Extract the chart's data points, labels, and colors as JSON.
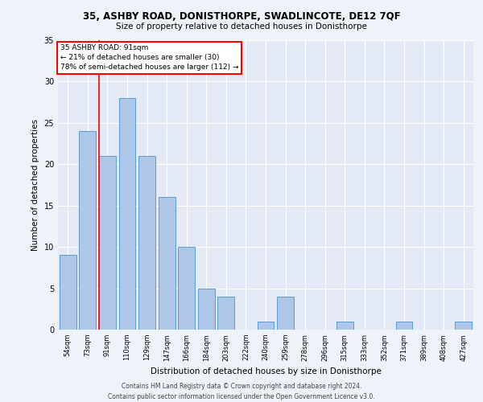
{
  "title1": "35, ASHBY ROAD, DONISTHORPE, SWADLINCOTE, DE12 7QF",
  "title2": "Size of property relative to detached houses in Donisthorpe",
  "xlabel": "Distribution of detached houses by size in Donisthorpe",
  "ylabel": "Number of detached properties",
  "categories": [
    "54sqm",
    "73sqm",
    "91sqm",
    "110sqm",
    "129sqm",
    "147sqm",
    "166sqm",
    "184sqm",
    "203sqm",
    "222sqm",
    "240sqm",
    "259sqm",
    "278sqm",
    "296sqm",
    "315sqm",
    "333sqm",
    "352sqm",
    "371sqm",
    "389sqm",
    "408sqm",
    "427sqm"
  ],
  "values": [
    9,
    24,
    21,
    28,
    21,
    16,
    10,
    5,
    4,
    0,
    1,
    4,
    0,
    0,
    1,
    0,
    0,
    1,
    0,
    0,
    1
  ],
  "bar_color": "#aec6e8",
  "bar_edgecolor": "#5b9bd5",
  "red_line_index": 2,
  "annotation_text": "35 ASHBY ROAD: 91sqm\n← 21% of detached houses are smaller (30)\n78% of semi-detached houses are larger (112) →",
  "annotation_box_color": "white",
  "annotation_box_edgecolor": "red",
  "ylim": [
    0,
    35
  ],
  "yticks": [
    0,
    5,
    10,
    15,
    20,
    25,
    30,
    35
  ],
  "footer1": "Contains HM Land Registry data © Crown copyright and database right 2024.",
  "footer2": "Contains public sector information licensed under the Open Government Licence v3.0.",
  "bg_color": "#eef2f9",
  "plot_bg_color": "#e4eaf5"
}
